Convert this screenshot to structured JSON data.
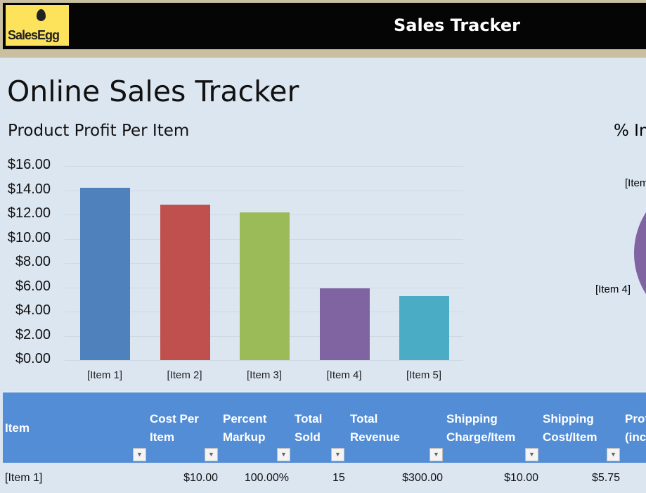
{
  "header": {
    "logo_text": "SalesEgg",
    "title": "Sales Tracker"
  },
  "page_title": "Online Sales Tracker",
  "chart_data": {
    "type": "bar",
    "title": "Product Profit Per Item",
    "categories": [
      "[Item 1]",
      "[Item 2]",
      "[Item 3]",
      "[Item 4]",
      "[Item 5]"
    ],
    "values": [
      14.2,
      12.8,
      12.15,
      5.9,
      5.3
    ],
    "colors": [
      "#4f81bd",
      "#c0504d",
      "#9bbb59",
      "#8064a2",
      "#4bacc6"
    ],
    "yticks": [
      "$0.00",
      "$2.00",
      "$4.00",
      "$6.00",
      "$8.00",
      "$10.00",
      "$12.00",
      "$14.00",
      "$16.00"
    ],
    "ylim": [
      0,
      16
    ],
    "xlabel": "",
    "ylabel": ""
  },
  "pie": {
    "title": "% In",
    "labels": [
      "[Item",
      "[Item 4]"
    ]
  },
  "table": {
    "headers": [
      "Item",
      "Cost Per\nItem",
      "Percent\nMarkup",
      "Total\nSold",
      "Total\nRevenue",
      "Shipping\nCharge/Item",
      "Shipping\nCost/Item",
      "Prof\n(inc"
    ],
    "rows": [
      [
        "[Item 1]",
        "$10.00",
        "100.00%",
        "15",
        "$300.00",
        "$10.00",
        "$5.75",
        ""
      ]
    ]
  },
  "dropdown_glyph": "▼"
}
